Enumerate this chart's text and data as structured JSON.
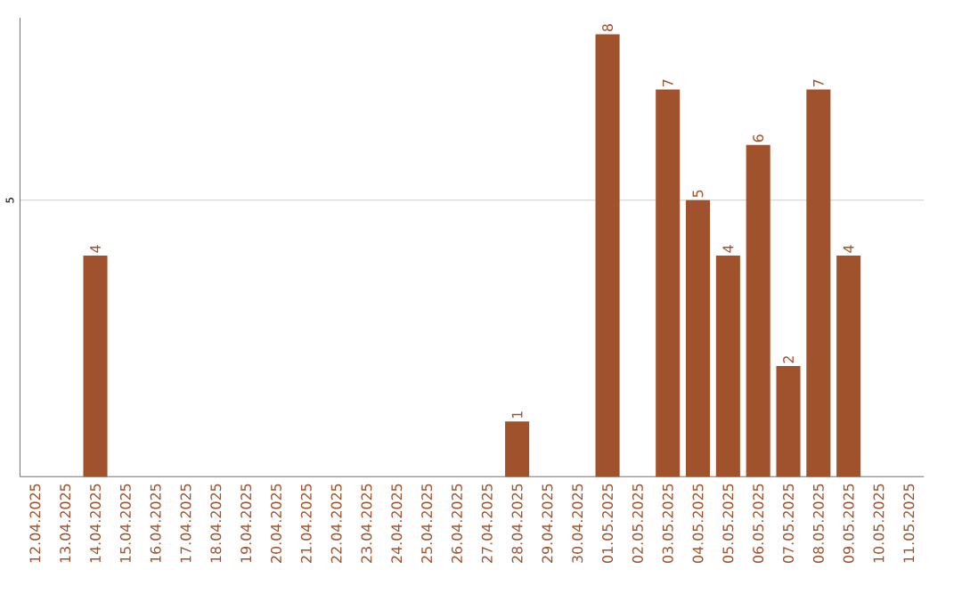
{
  "chart_data": {
    "type": "bar",
    "categories": [
      "12.04.2025",
      "13.04.2025",
      "14.04.2025",
      "15.04.2025",
      "16.04.2025",
      "17.04.2025",
      "18.04.2025",
      "19.04.2025",
      "20.04.2025",
      "21.04.2025",
      "22.04.2025",
      "23.04.2025",
      "24.04.2025",
      "25.04.2025",
      "26.04.2025",
      "27.04.2025",
      "28.04.2025",
      "29.04.2025",
      "30.04.2025",
      "01.05.2025",
      "02.05.2025",
      "03.05.2025",
      "04.05.2025",
      "05.05.2025",
      "06.05.2025",
      "07.05.2025",
      "08.05.2025",
      "09.05.2025",
      "10.05.2025",
      "11.05.2025"
    ],
    "values": [
      null,
      null,
      4,
      null,
      null,
      null,
      null,
      null,
      null,
      null,
      null,
      null,
      null,
      null,
      null,
      null,
      1,
      null,
      null,
      8,
      null,
      7,
      5,
      4,
      6,
      2,
      7,
      4,
      null,
      null
    ],
    "color": "#a0522d",
    "ylim": [
      0,
      8.3
    ],
    "yticks": [
      5
    ],
    "grid": "y",
    "data_labels": true
  }
}
